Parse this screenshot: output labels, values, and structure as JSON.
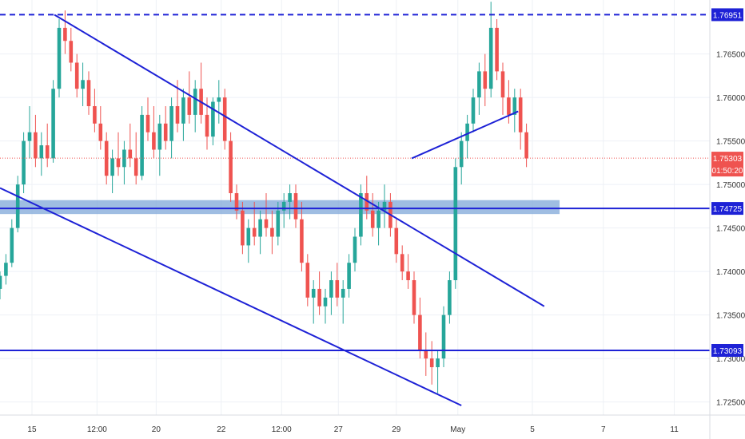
{
  "chart_data": {
    "type": "candlestick",
    "price_axis": {
      "ticks": [
        "1.72500",
        "1.73000",
        "1.73500",
        "1.74000",
        "1.74500",
        "1.75000",
        "1.75500",
        "1.76000",
        "1.76500"
      ],
      "range": [
        1.7235,
        1.7712
      ]
    },
    "time_axis": {
      "ticks": [
        "15",
        "12:00",
        "20",
        "22",
        "12:00",
        "27",
        "29",
        "May",
        "5",
        "7",
        "11"
      ],
      "range": [
        0,
        60
      ]
    },
    "colors": {
      "up": "#26a69a",
      "down": "#ef5350",
      "line": "#1e22d6",
      "zone": "#7fa7d8"
    },
    "horizontal_levels": [
      {
        "price": 1.76951,
        "label": "1.76951",
        "style": "dashed"
      },
      {
        "price": 1.74725,
        "label": "1.74725",
        "style": "solid"
      },
      {
        "price": 1.73093,
        "label": "1.73093",
        "style": "solid"
      }
    ],
    "current_price": {
      "price": 1.75303,
      "label": "1.75303",
      "countdown": "01:50:20"
    },
    "zone": {
      "top": 1.7482,
      "bottom": 1.7466,
      "x_start": 0,
      "x_end": 47.3
    },
    "trendlines": [
      {
        "x1": 4.6,
        "y1": 1.7695,
        "x2": 46.0,
        "y2": 1.736
      },
      {
        "x1": 0.0,
        "y1": 1.7496,
        "x2": 39.0,
        "y2": 1.7246
      },
      {
        "x1": 34.8,
        "y1": 1.753,
        "x2": 43.8,
        "y2": 1.7584
      }
    ],
    "ohlc": [
      [
        0.0,
        1.738,
        1.74,
        1.7368,
        1.7395
      ],
      [
        0.5,
        1.7395,
        1.742,
        1.7385,
        1.741
      ],
      [
        1.0,
        1.741,
        1.746,
        1.7405,
        1.745
      ],
      [
        1.5,
        1.745,
        1.751,
        1.7445,
        1.75
      ],
      [
        2.0,
        1.75,
        1.756,
        1.749,
        1.755
      ],
      [
        2.5,
        1.755,
        1.759,
        1.753,
        1.756
      ],
      [
        3.0,
        1.756,
        1.758,
        1.752,
        1.753
      ],
      [
        3.5,
        1.753,
        1.756,
        1.751,
        1.7545
      ],
      [
        4.0,
        1.7545,
        1.757,
        1.752,
        1.753
      ],
      [
        4.5,
        1.753,
        1.762,
        1.7525,
        1.761
      ],
      [
        5.0,
        1.761,
        1.769,
        1.76,
        1.768
      ],
      [
        5.5,
        1.768,
        1.77,
        1.765,
        1.7665
      ],
      [
        6.0,
        1.7665,
        1.768,
        1.763,
        1.764
      ],
      [
        6.5,
        1.764,
        1.765,
        1.76,
        1.761
      ],
      [
        7.0,
        1.761,
        1.764,
        1.759,
        1.762
      ],
      [
        7.5,
        1.762,
        1.763,
        1.758,
        1.759
      ],
      [
        8.0,
        1.759,
        1.761,
        1.756,
        1.757
      ],
      [
        8.5,
        1.757,
        1.759,
        1.754,
        1.755
      ],
      [
        9.0,
        1.755,
        1.756,
        1.75,
        1.751
      ],
      [
        9.5,
        1.751,
        1.754,
        1.749,
        1.753
      ],
      [
        10.0,
        1.753,
        1.756,
        1.751,
        1.752
      ],
      [
        10.5,
        1.752,
        1.755,
        1.75,
        1.754
      ],
      [
        11.0,
        1.754,
        1.757,
        1.752,
        1.753
      ],
      [
        11.5,
        1.753,
        1.756,
        1.75,
        1.751
      ],
      [
        12.0,
        1.751,
        1.759,
        1.7505,
        1.758
      ],
      [
        12.5,
        1.758,
        1.76,
        1.755,
        1.756
      ],
      [
        13.0,
        1.756,
        1.759,
        1.753,
        1.754
      ],
      [
        13.5,
        1.754,
        1.758,
        1.751,
        1.757
      ],
      [
        14.0,
        1.757,
        1.759,
        1.754,
        1.755
      ],
      [
        14.5,
        1.755,
        1.76,
        1.753,
        1.759
      ],
      [
        15.0,
        1.759,
        1.762,
        1.756,
        1.757
      ],
      [
        15.5,
        1.757,
        1.761,
        1.755,
        1.76
      ],
      [
        16.0,
        1.76,
        1.763,
        1.757,
        1.758
      ],
      [
        16.5,
        1.758,
        1.762,
        1.756,
        1.761
      ],
      [
        17.0,
        1.761,
        1.764,
        1.757,
        1.758
      ],
      [
        17.5,
        1.758,
        1.76,
        1.754,
        1.7555
      ],
      [
        18.0,
        1.7555,
        1.76,
        1.7545,
        1.7595
      ],
      [
        18.5,
        1.7595,
        1.762,
        1.757,
        1.76
      ],
      [
        19.0,
        1.76,
        1.761,
        1.754,
        1.755
      ],
      [
        19.5,
        1.755,
        1.756,
        1.748,
        1.749
      ],
      [
        20.0,
        1.749,
        1.75,
        1.746,
        1.747
      ],
      [
        20.5,
        1.747,
        1.748,
        1.742,
        1.743
      ],
      [
        21.0,
        1.743,
        1.746,
        1.741,
        1.745
      ],
      [
        21.5,
        1.745,
        1.748,
        1.743,
        1.744
      ],
      [
        22.0,
        1.744,
        1.747,
        1.742,
        1.746
      ],
      [
        22.5,
        1.746,
        1.749,
        1.744,
        1.745
      ],
      [
        23.0,
        1.745,
        1.747,
        1.742,
        1.744
      ],
      [
        23.5,
        1.744,
        1.748,
        1.743,
        1.747
      ],
      [
        24.0,
        1.747,
        1.749,
        1.745,
        1.748
      ],
      [
        24.5,
        1.748,
        1.75,
        1.746,
        1.749
      ],
      [
        25.0,
        1.749,
        1.75,
        1.745,
        1.746
      ],
      [
        25.5,
        1.746,
        1.748,
        1.74,
        1.741
      ],
      [
        26.0,
        1.741,
        1.742,
        1.736,
        1.737
      ],
      [
        26.5,
        1.737,
        1.739,
        1.734,
        1.738
      ],
      [
        27.0,
        1.738,
        1.74,
        1.735,
        1.736
      ],
      [
        27.5,
        1.736,
        1.738,
        1.734,
        1.737
      ],
      [
        28.0,
        1.737,
        1.74,
        1.735,
        1.739
      ],
      [
        28.5,
        1.739,
        1.741,
        1.736,
        1.737
      ],
      [
        29.0,
        1.737,
        1.739,
        1.734,
        1.738
      ],
      [
        29.5,
        1.738,
        1.742,
        1.737,
        1.741
      ],
      [
        30.0,
        1.741,
        1.745,
        1.74,
        1.744
      ],
      [
        30.5,
        1.744,
        1.75,
        1.743,
        1.749
      ],
      [
        31.0,
        1.749,
        1.751,
        1.746,
        1.747
      ],
      [
        31.5,
        1.747,
        1.749,
        1.744,
        1.745
      ],
      [
        32.0,
        1.745,
        1.748,
        1.743,
        1.747
      ],
      [
        32.5,
        1.747,
        1.75,
        1.745,
        1.748
      ],
      [
        33.0,
        1.748,
        1.749,
        1.744,
        1.745
      ],
      [
        33.5,
        1.745,
        1.746,
        1.741,
        1.742
      ],
      [
        34.0,
        1.742,
        1.743,
        1.739,
        1.74
      ],
      [
        34.5,
        1.74,
        1.742,
        1.738,
        1.739
      ],
      [
        35.0,
        1.739,
        1.74,
        1.734,
        1.735
      ],
      [
        35.5,
        1.735,
        1.737,
        1.73,
        1.731
      ],
      [
        36.0,
        1.731,
        1.733,
        1.728,
        1.73
      ],
      [
        36.5,
        1.73,
        1.732,
        1.727,
        1.729
      ],
      [
        37.0,
        1.729,
        1.731,
        1.726,
        1.73
      ],
      [
        37.5,
        1.73,
        1.736,
        1.729,
        1.735
      ],
      [
        38.0,
        1.735,
        1.74,
        1.734,
        1.739
      ],
      [
        38.5,
        1.739,
        1.753,
        1.738,
        1.752
      ],
      [
        39.0,
        1.752,
        1.756,
        1.75,
        1.755
      ],
      [
        39.5,
        1.755,
        1.758,
        1.753,
        1.757
      ],
      [
        40.0,
        1.757,
        1.761,
        1.756,
        1.76
      ],
      [
        40.5,
        1.76,
        1.764,
        1.758,
        1.763
      ],
      [
        41.0,
        1.763,
        1.765,
        1.759,
        1.761
      ],
      [
        41.5,
        1.761,
        1.771,
        1.76,
        1.768
      ],
      [
        42.0,
        1.768,
        1.769,
        1.762,
        1.763
      ],
      [
        42.5,
        1.763,
        1.764,
        1.758,
        1.76
      ],
      [
        43.0,
        1.76,
        1.762,
        1.757,
        1.758
      ],
      [
        43.5,
        1.758,
        1.761,
        1.756,
        1.76
      ],
      [
        44.0,
        1.76,
        1.761,
        1.754,
        1.756
      ],
      [
        44.5,
        1.756,
        1.757,
        1.752,
        1.753
      ]
    ]
  }
}
